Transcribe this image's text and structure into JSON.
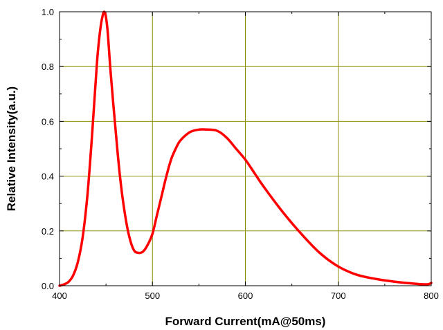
{
  "chart_data": {
    "type": "line",
    "title": "",
    "xlabel": "Forward Current(mA@50ms)",
    "ylabel": "Relative Intensity(a.u.)",
    "xlim": [
      400,
      800
    ],
    "ylim": [
      0.0,
      1.0
    ],
    "x_ticks": [
      400,
      500,
      600,
      700,
      800
    ],
    "x_tick_labels": [
      "400",
      "500",
      "600",
      "700",
      "800"
    ],
    "y_ticks": [
      0.0,
      0.2,
      0.4,
      0.6,
      0.8,
      1.0
    ],
    "y_tick_labels": [
      "0.0",
      "0.2",
      "0.4",
      "0.6",
      "0.8",
      "1.0"
    ],
    "grid": true,
    "grid_color": "#8b8b00",
    "line_color": "#ff0000",
    "series": [
      {
        "x": [
          400,
          405,
          410,
          415,
          420,
          425,
          430,
          435,
          440,
          442,
          444,
          446,
          448,
          450,
          452,
          455,
          460,
          465,
          470,
          475,
          480,
          485,
          490,
          495,
          500,
          505,
          510,
          515,
          520,
          525,
          530,
          540,
          550,
          560,
          570,
          580,
          590,
          600,
          610,
          620,
          640,
          660,
          680,
          700,
          720,
          740,
          760,
          780,
          795,
          800
        ],
        "y": [
          0.0,
          0.005,
          0.015,
          0.04,
          0.09,
          0.18,
          0.33,
          0.55,
          0.8,
          0.88,
          0.94,
          0.98,
          1.0,
          0.98,
          0.92,
          0.78,
          0.58,
          0.4,
          0.27,
          0.18,
          0.13,
          0.12,
          0.125,
          0.15,
          0.19,
          0.26,
          0.33,
          0.4,
          0.46,
          0.5,
          0.53,
          0.56,
          0.57,
          0.57,
          0.565,
          0.54,
          0.5,
          0.46,
          0.41,
          0.36,
          0.27,
          0.19,
          0.12,
          0.07,
          0.04,
          0.025,
          0.015,
          0.008,
          0.005,
          0.01
        ]
      }
    ]
  }
}
